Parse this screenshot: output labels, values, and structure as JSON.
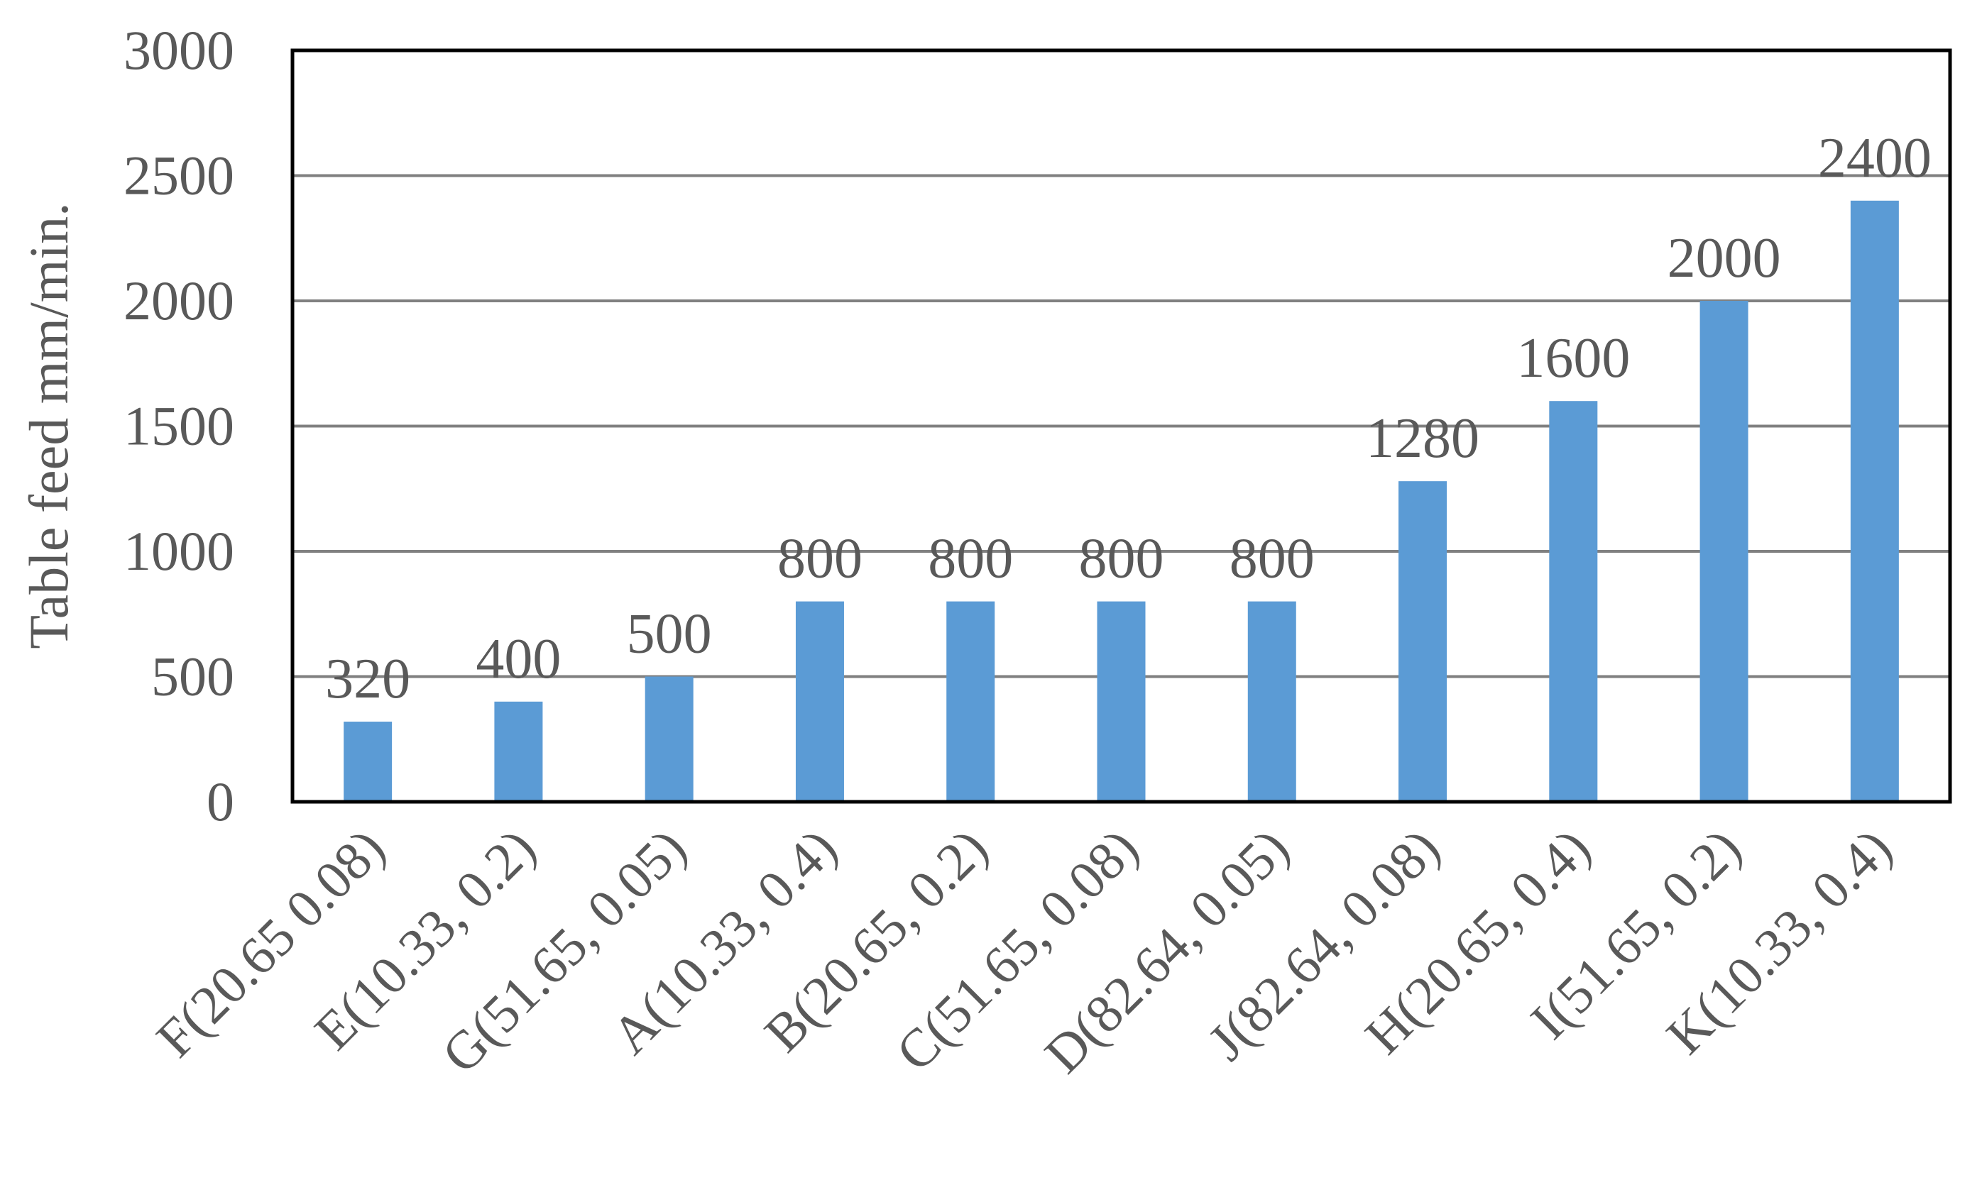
{
  "chart_data": {
    "type": "bar",
    "title": "",
    "xlabel": "",
    "ylabel": "Table feed mm/min.",
    "ylim": [
      0,
      3000
    ],
    "yticks": [
      0,
      500,
      1000,
      1500,
      2000,
      2500,
      3000
    ],
    "ytick_labels": [
      "0",
      "500",
      "1000",
      "1500",
      "2000",
      "2500",
      "3000"
    ],
    "grid": true,
    "legend": "none",
    "categories": [
      "F(20.65 0.08)",
      "E(10.33, 0.2)",
      "G(51.65, 0.05)",
      "A(10.33, 0.4)",
      "B(20.65, 0.2)",
      "C(51.65, 0.08)",
      "D(82.64, 0.05)",
      "J(82.64, 0.08)",
      "H(20.65, 0.4)",
      "I(51.65, 0.2)",
      "K(10.33, 0.4)"
    ],
    "values": [
      320,
      400,
      500,
      800,
      800,
      800,
      800,
      1280,
      1600,
      2000,
      2400
    ],
    "data_labels": [
      "320",
      "400",
      "500",
      "800",
      "800",
      "800",
      "800",
      "1280",
      "1600",
      "2000",
      "2400"
    ],
    "bar_color": "#5b9bd5",
    "gridline_color": "#808080",
    "axis_color": "#000000",
    "text_color": "#595959"
  }
}
